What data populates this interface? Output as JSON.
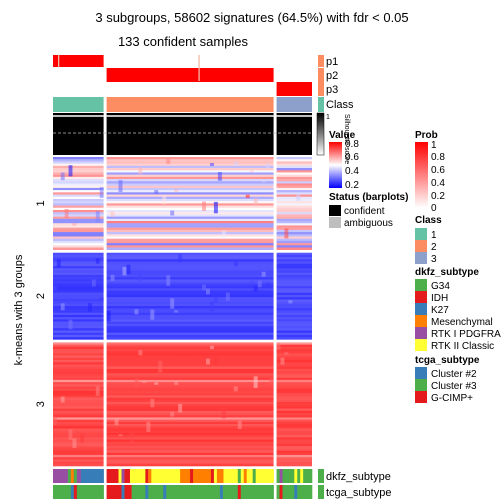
{
  "title": "3 subgroups, 58602 signatures (64.5%) with fdr < 0.05",
  "subtitle": "133 confident samples",
  "row_axis_label": "k-means with 3 groups",
  "colors": {
    "class1": "#66C2A5",
    "class2": "#FC8D62",
    "class3": "#8DA0CB",
    "prob_high": "#FF0000",
    "prob_low": "#FFFFFF",
    "heat_high": "#FF0000",
    "heat_mid": "#FFFFFF",
    "heat_low": "#0000FF",
    "confident": "#000000",
    "ambiguous": "#BEBEBE"
  },
  "annotation_labels": {
    "p1": "p1",
    "p2": "p2",
    "p3": "p3",
    "class": "Class",
    "silhouette": "Silhouette score",
    "silhouette_tick": "1",
    "dkfz_subtype": "dkfz_subtype",
    "tcga_subtype": "tcga_subtype"
  },
  "legends": {
    "value": {
      "title": "Value",
      "ticks": [
        "0.8",
        "0.6",
        "0.4",
        "0.2"
      ]
    },
    "status": {
      "title": "Status (barplots)",
      "items": [
        {
          "label": "confident",
          "color": "#000000"
        },
        {
          "label": "ambiguous",
          "color": "#BEBEBE"
        }
      ]
    },
    "prob": {
      "title": "Prob",
      "ticks": [
        "1",
        "0.8",
        "0.6",
        "0.4",
        "0.2",
        "0"
      ]
    },
    "class": {
      "title": "Class",
      "items": [
        {
          "label": "1",
          "color": "#66C2A5"
        },
        {
          "label": "2",
          "color": "#FC8D62"
        },
        {
          "label": "3",
          "color": "#8DA0CB"
        }
      ]
    },
    "dkfz_subtype": {
      "title": "dkfz_subtype",
      "items": [
        {
          "label": "G34",
          "color": "#4DAF4A"
        },
        {
          "label": "IDH",
          "color": "#E41A1C"
        },
        {
          "label": "K27",
          "color": "#377EB8"
        },
        {
          "label": "Mesenchymal",
          "color": "#FF7F00"
        },
        {
          "label": "RTK I PDGFRA",
          "color": "#984EA3"
        },
        {
          "label": "RTK II Classic",
          "color": "#FFFF33"
        }
      ]
    },
    "tcga_subtype": {
      "title": "tcga_subtype",
      "items": [
        {
          "label": "Cluster #2",
          "color": "#377EB8"
        },
        {
          "label": "Cluster #3",
          "color": "#4DAF4A"
        },
        {
          "label": "G-CIMP+",
          "color": "#E41A1C"
        }
      ]
    }
  },
  "chart_data": {
    "type": "heatmap",
    "column_groups": [
      {
        "class": "1",
        "share": 0.2
      },
      {
        "class": "2",
        "share": 0.66
      },
      {
        "class": "3",
        "share": 0.14
      }
    ],
    "row_groups": [
      {
        "label": "1",
        "share": 0.306
      },
      {
        "label": "2",
        "share": 0.286
      },
      {
        "label": "3",
        "share": 0.408
      }
    ],
    "row_group_pattern": [
      {
        "group": "1",
        "class1": "mixed",
        "class2": "mixed",
        "class3": "mixed"
      },
      {
        "group": "2",
        "class1": "low",
        "class2": "low",
        "class3": "low"
      },
      {
        "group": "3",
        "class1": "high",
        "class2": "high",
        "class3": "high"
      }
    ],
    "value_range": [
      0.2,
      0.8
    ]
  }
}
